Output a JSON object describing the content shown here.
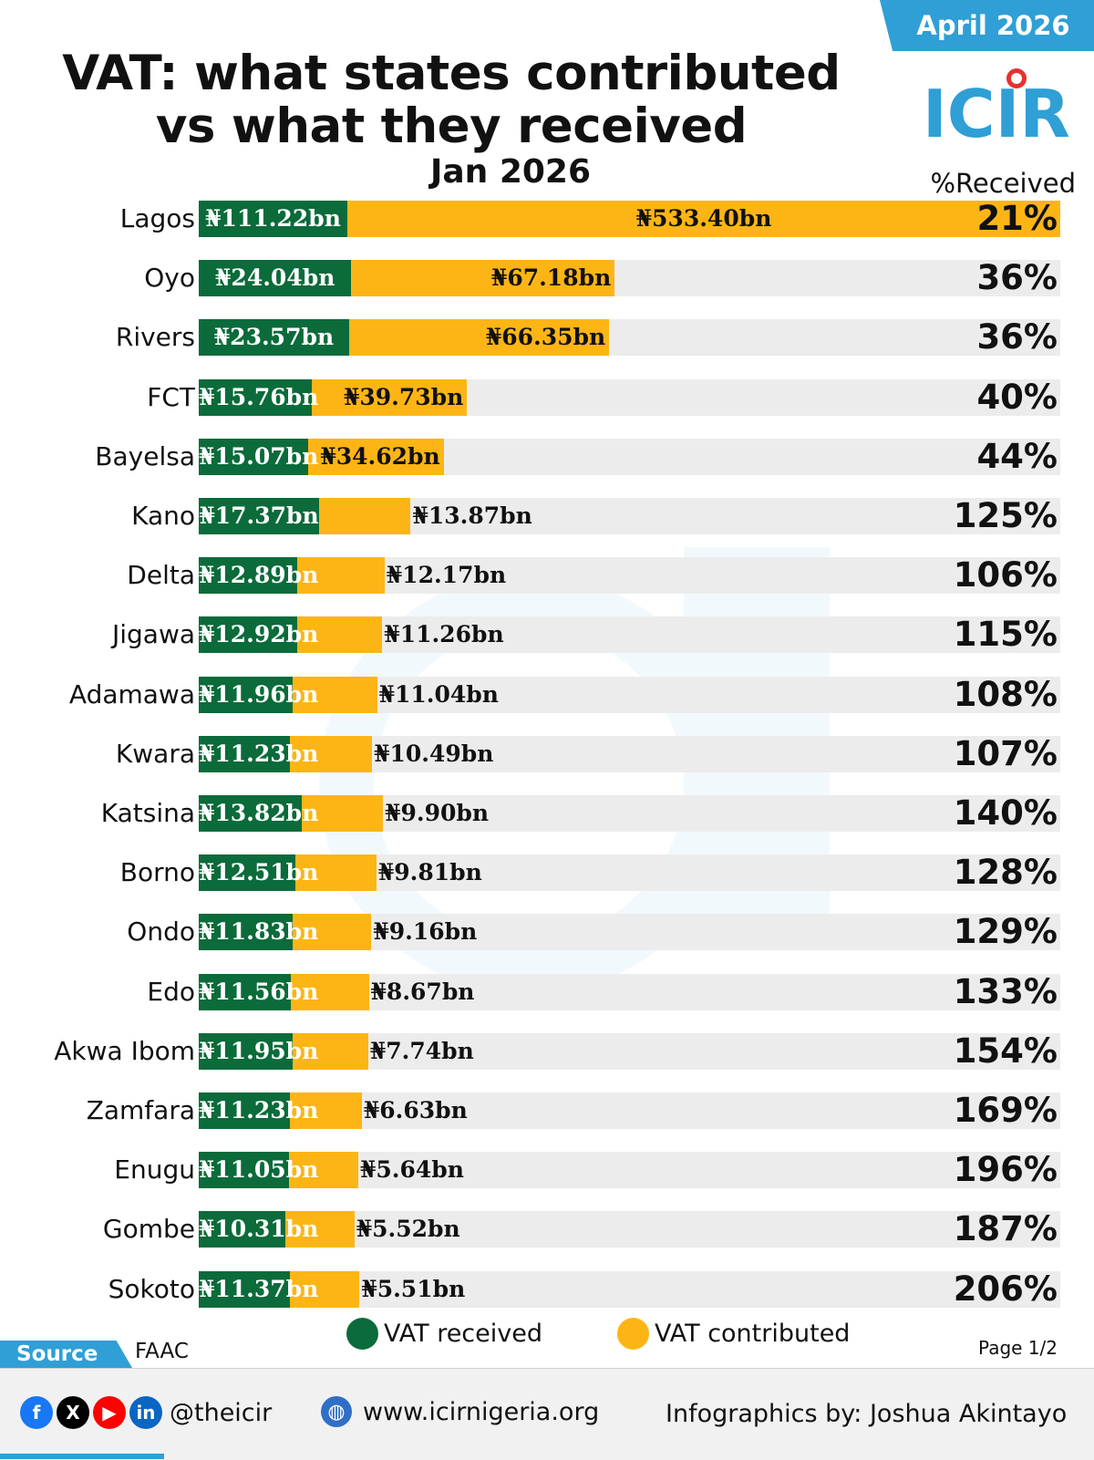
{
  "header": {
    "badge": "April 2026",
    "title_line1": "VAT: what states contributed",
    "title_line2": "vs what they received",
    "subtitle": "Jan 2026",
    "logo_text": "ICIR",
    "pct_header": "%Received"
  },
  "chart_data": {
    "type": "bar",
    "orientation": "horizontal",
    "title": "VAT: what states contributed vs what they received",
    "subtitle": "Jan 2026",
    "unit": "₦bn",
    "categories": [
      "Lagos",
      "Oyo",
      "Rivers",
      "FCT",
      "Bayelsa",
      "Kano",
      "Delta",
      "Jigawa",
      "Adamawa",
      "Kwara",
      "Katsina",
      "Borno",
      "Ondo",
      "Edo",
      "Akwa Ibom",
      "Zamfara",
      "Enugu",
      "Gombe",
      "Sokoto"
    ],
    "series": [
      {
        "name": "VAT received",
        "color": "#0b6b3a",
        "values": [
          111.22,
          24.04,
          23.57,
          15.76,
          15.07,
          17.37,
          12.89,
          12.92,
          11.96,
          11.23,
          13.82,
          12.51,
          11.83,
          11.56,
          11.95,
          11.23,
          11.05,
          10.31,
          11.37
        ],
        "labels": [
          "₦111.22bn",
          "₦24.04bn",
          "₦23.57bn",
          "₦15.76bn",
          "₦15.07bn",
          "₦17.37bn",
          "₦12.89bn",
          "₦12.92bn",
          "₦11.96bn",
          "₦11.23bn",
          "₦13.82bn",
          "₦12.51bn",
          "₦11.83bn",
          "₦11.56bn",
          "₦11.95bn",
          "₦11.23bn",
          "₦11.05bn",
          "₦10.31bn",
          "₦11.37bn"
        ]
      },
      {
        "name": "VAT contributed",
        "color": "#fdb515",
        "values": [
          533.4,
          67.18,
          66.35,
          39.73,
          34.62,
          13.87,
          12.17,
          11.26,
          11.04,
          10.49,
          9.9,
          9.81,
          9.16,
          8.67,
          7.74,
          6.63,
          5.64,
          5.52,
          5.51
        ],
        "labels": [
          "₦533.40bn",
          "₦67.18bn",
          "₦66.35bn",
          "₦39.73bn",
          "₦34.62bn",
          "₦13.87bn",
          "₦12.17bn",
          "₦11.26bn",
          "₦11.04bn",
          "₦10.49bn",
          "₦9.90bn",
          "₦9.81bn",
          "₦9.16bn",
          "₦8.67bn",
          "₦7.74bn",
          "₦6.63bn",
          "₦5.64bn",
          "₦5.52bn",
          "₦5.51bn"
        ]
      }
    ],
    "percent_received": [
      "21%",
      "36%",
      "36%",
      "40%",
      "44%",
      "125%",
      "106%",
      "115%",
      "108%",
      "107%",
      "140%",
      "128%",
      "129%",
      "133%",
      "154%",
      "169%",
      "196%",
      "187%",
      "206%"
    ],
    "legend": [
      "VAT received",
      "VAT contributed"
    ],
    "legend_position": "bottom"
  },
  "source": {
    "label": "Source",
    "value": "FAAC"
  },
  "page": "Page 1/2",
  "footer": {
    "social_icons": [
      "facebook-icon",
      "x-icon",
      "youtube-icon",
      "linkedin-icon"
    ],
    "handle": "@theicir",
    "website": "www.icirnigeria.org",
    "credit": "Infographics by: Joshua Akintayo"
  }
}
